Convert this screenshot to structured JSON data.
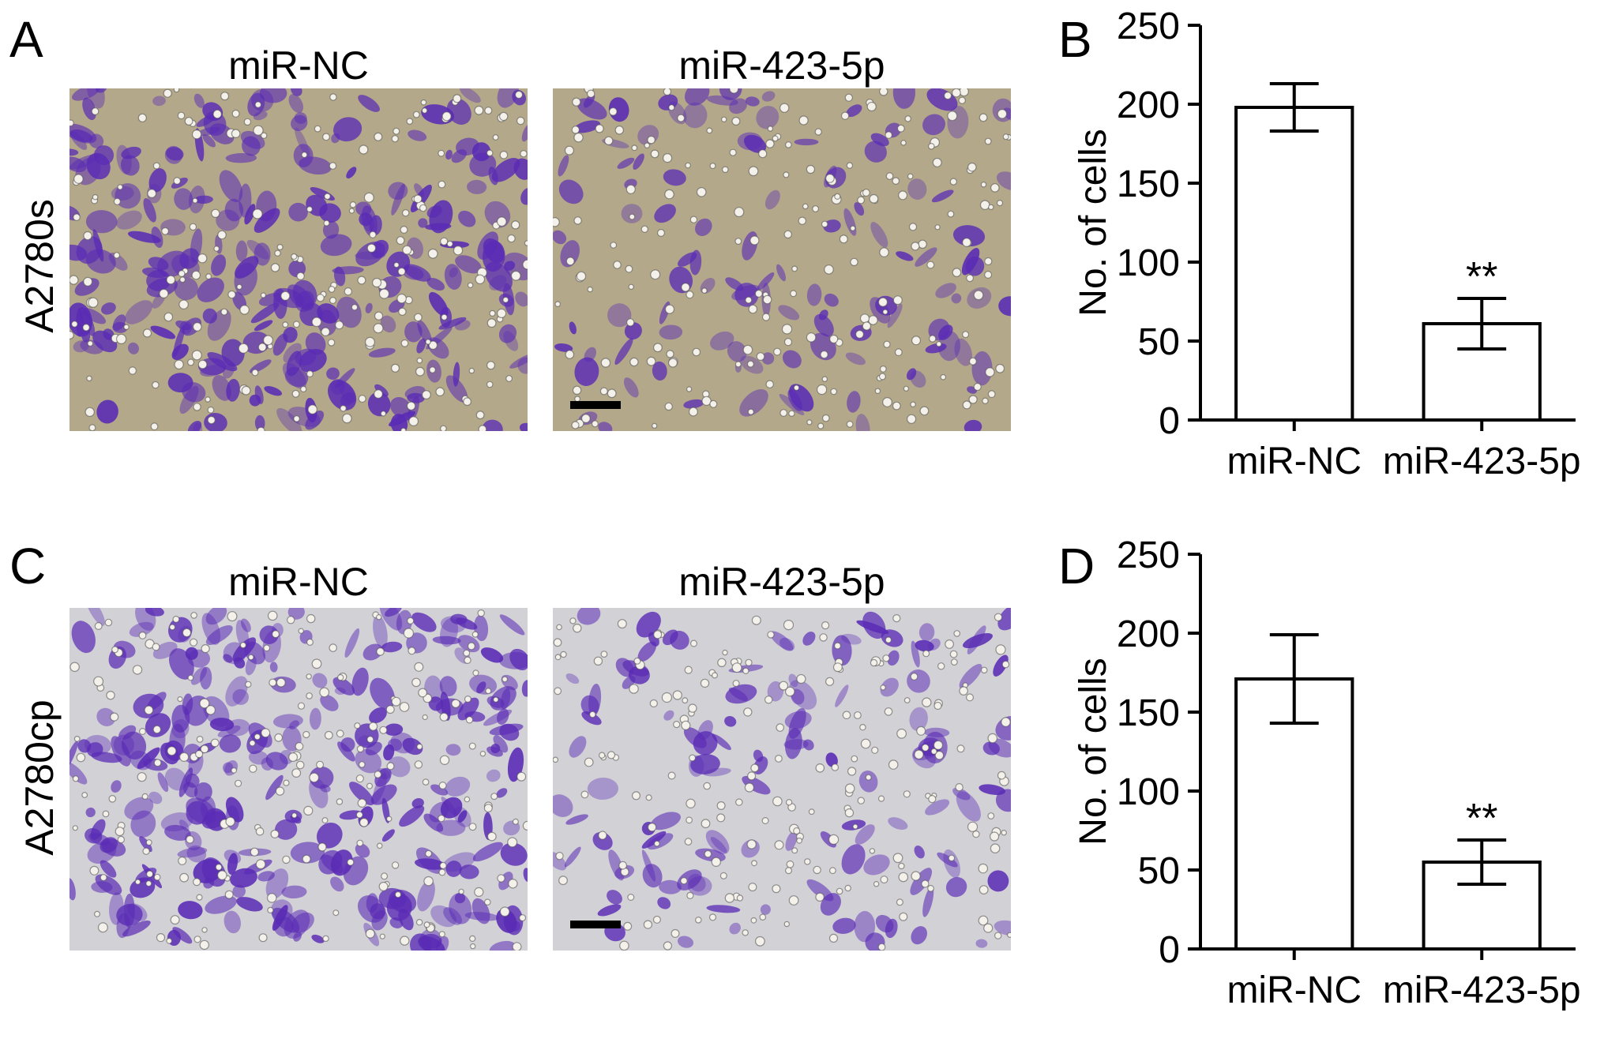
{
  "panels": {
    "A": {
      "letter": "A",
      "row_label": "A2780s",
      "titles": [
        "miR-NC",
        "miR-423-5p"
      ]
    },
    "B": {
      "letter": "B"
    },
    "C": {
      "letter": "C",
      "row_label": "A2780cp",
      "titles": [
        "miR-NC",
        "miR-423-5p"
      ]
    },
    "D": {
      "letter": "D"
    }
  },
  "colors": {
    "stain_violet": "#5a2bb5",
    "background_A": "#b3a889",
    "background_C": "#d2d1d6"
  },
  "chart_data": [
    {
      "panel": "B",
      "type": "bar",
      "categories": [
        "miR-NC",
        "miR-423-5p"
      ],
      "values": [
        198,
        61
      ],
      "errors": [
        15,
        16
      ],
      "annotations": [
        "",
        "**"
      ],
      "ylabel": "No. of cells",
      "xlabel": "",
      "ylim": [
        0,
        250
      ],
      "yticks": [
        0,
        50,
        100,
        150,
        200,
        250
      ],
      "grid": false,
      "bar_fill": "#ffffff",
      "bar_stroke": "#000000"
    },
    {
      "panel": "D",
      "type": "bar",
      "categories": [
        "miR-NC",
        "miR-423-5p"
      ],
      "values": [
        171,
        55
      ],
      "errors": [
        28,
        14
      ],
      "annotations": [
        "",
        "**"
      ],
      "ylabel": "No. of cells",
      "xlabel": "",
      "ylim": [
        0,
        250
      ],
      "yticks": [
        0,
        50,
        100,
        150,
        200,
        250
      ],
      "grid": false,
      "bar_fill": "#ffffff",
      "bar_stroke": "#000000"
    }
  ]
}
